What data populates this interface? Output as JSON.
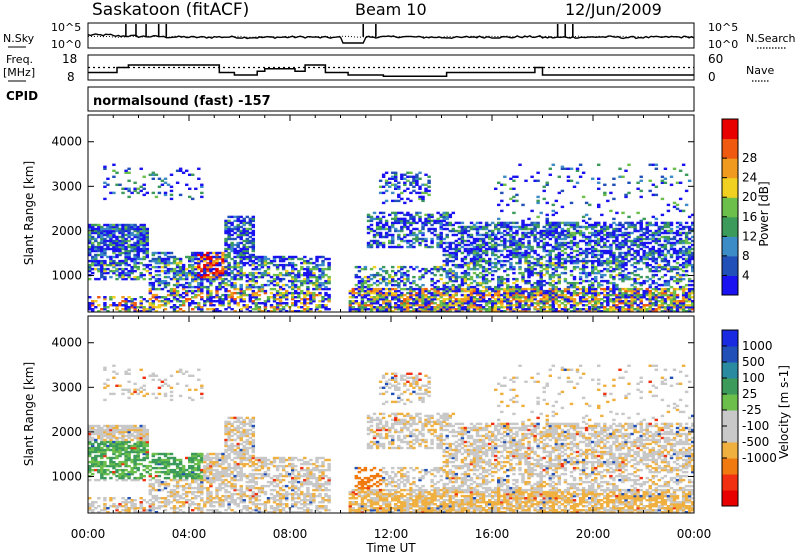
{
  "header": {
    "radar": "Saskatoon (fitACF)",
    "beam": "Beam 10",
    "date": "12/Jun/2009"
  },
  "side_labels": {
    "nsky": "N.Sky",
    "nsearch": "N.Search",
    "freq_line1": "Freq.",
    "freq_line2": "[MHz]",
    "nave": "Nave",
    "cpid": "CPID"
  },
  "cpid_text": "normalsound (fast) -157",
  "palettes": {
    "power": [
      "#1a12f0",
      "#2050b8",
      "#3c8cc8",
      "#3c9a5a",
      "#6cbf4a",
      "#f0d020",
      "#f09a20",
      "#f05a10",
      "#e80000"
    ],
    "velocity": [
      "#e80000",
      "#f03010",
      "#f07a10",
      "#f0b040",
      "#c8c8c8",
      "#c8c8c8",
      "#6cbf4a",
      "#3c9a5a",
      "#2a8aa0",
      "#2050b8",
      "#1a2ae0"
    ]
  },
  "chart_data": [
    {
      "type": "line",
      "panel": "N.Sky / N.Search",
      "ylabel_left": "N.Sky",
      "ylabel_right": "N.Search",
      "left_ticks": [
        "10^5",
        "10^0"
      ],
      "right_ticks": [
        "10^5",
        "10^0"
      ],
      "x_unit": "hours UT",
      "x_range": [
        0,
        24
      ],
      "nsky_level": [
        0.52,
        0.48,
        0.46,
        0.44,
        0.43,
        0.44,
        0.42,
        0.43,
        0.44,
        0.42,
        0.43,
        0.44,
        0.45,
        0.43,
        0.42,
        0.44,
        0.43,
        0.45,
        0.42,
        0.43,
        0.44,
        0.42,
        0.43,
        0.44,
        0.42
      ],
      "spikes_hours": [
        1.5,
        1.9,
        2.3,
        2.8,
        3.1,
        10.9,
        11.4,
        18.6,
        18.9,
        19.2
      ]
    },
    {
      "type": "line",
      "panel": "Freq. / Nave",
      "ylabel_left": "Freq. [MHz]",
      "ylabel_right": "Nave",
      "left_ticks": [
        18,
        8
      ],
      "right_ticks": [
        60,
        0
      ],
      "ylim_left": [
        8,
        18
      ],
      "ylim_right": [
        0,
        60
      ],
      "x_range": [
        0,
        24
      ],
      "freq_steps": [
        {
          "start": 0.0,
          "end": 1.15,
          "freq": 11
        },
        {
          "start": 1.15,
          "end": 1.6,
          "freq": 13
        },
        {
          "start": 1.6,
          "end": 5.2,
          "freq": 14
        },
        {
          "start": 5.2,
          "end": 5.8,
          "freq": 11
        },
        {
          "start": 5.8,
          "end": 6.7,
          "freq": 10
        },
        {
          "start": 6.7,
          "end": 7.0,
          "freq": 11.5
        },
        {
          "start": 7.0,
          "end": 8.2,
          "freq": 12.5
        },
        {
          "start": 8.2,
          "end": 8.6,
          "freq": 11.5
        },
        {
          "start": 8.6,
          "end": 9.4,
          "freq": 14
        },
        {
          "start": 9.4,
          "end": 10.3,
          "freq": 11
        },
        {
          "start": 10.3,
          "end": 11.7,
          "freq": 10
        },
        {
          "start": 11.7,
          "end": 14.2,
          "freq": 9.5
        },
        {
          "start": 14.2,
          "end": 17.7,
          "freq": 11
        },
        {
          "start": 17.7,
          "end": 18.0,
          "freq": 13
        },
        {
          "start": 18.0,
          "end": 24.0,
          "freq": 10
        }
      ],
      "nave_level": 30
    },
    {
      "type": "heatmap",
      "panel": "Power",
      "ylabel": "Slant Range [km]",
      "yticks": [
        1000,
        2000,
        3000,
        4000
      ],
      "ylim": [
        180,
        4600
      ],
      "x_range": [
        0,
        24
      ],
      "colorbar_label": "Power [dB]",
      "colorbar_ticks": [
        4,
        8,
        12,
        16,
        20,
        24,
        28
      ],
      "data_gap_hours": [
        9.7,
        10.3
      ]
    },
    {
      "type": "heatmap",
      "panel": "Velocity",
      "ylabel": "Slant Range [km]",
      "yticks": [
        1000,
        2000,
        3000,
        4000
      ],
      "ylim": [
        180,
        4600
      ],
      "x_range": [
        0,
        24
      ],
      "xticks": [
        "00:00",
        "04:00",
        "08:00",
        "12:00",
        "16:00",
        "20:00",
        "00:00"
      ],
      "xlabel": "Time UT",
      "colorbar_label": "Velocity [m s-1]",
      "colorbar_ticks": [
        1000,
        500,
        100,
        25,
        -25,
        -100,
        -500,
        -1000
      ],
      "data_gap_hours": [
        9.7,
        10.3
      ]
    }
  ]
}
